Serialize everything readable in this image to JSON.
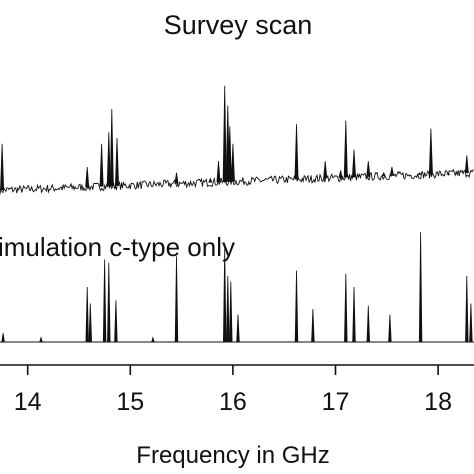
{
  "chart_data": [
    {
      "type": "line",
      "title": "Survey scan",
      "xlabel": "Frequency in GHz",
      "ylabel": "",
      "xlim": [
        13.73,
        18.35
      ],
      "ylim": [
        0,
        1
      ],
      "baseline": {
        "x": [
          13.73,
          18.35
        ],
        "y": [
          0.05,
          0.2
        ]
      },
      "peaks": [
        {
          "x": 13.75,
          "y": 0.45
        },
        {
          "x": 14.58,
          "y": 0.25
        },
        {
          "x": 14.72,
          "y": 0.45
        },
        {
          "x": 14.79,
          "y": 0.55
        },
        {
          "x": 14.82,
          "y": 0.75
        },
        {
          "x": 14.87,
          "y": 0.5
        },
        {
          "x": 15.45,
          "y": 0.2
        },
        {
          "x": 15.78,
          "y": 0.15
        },
        {
          "x": 15.86,
          "y": 0.3
        },
        {
          "x": 15.92,
          "y": 0.95
        },
        {
          "x": 15.95,
          "y": 0.78
        },
        {
          "x": 15.97,
          "y": 0.6
        },
        {
          "x": 16.0,
          "y": 0.45
        },
        {
          "x": 16.62,
          "y": 0.62
        },
        {
          "x": 16.9,
          "y": 0.3
        },
        {
          "x": 17.05,
          "y": 0.22
        },
        {
          "x": 17.1,
          "y": 0.65
        },
        {
          "x": 17.18,
          "y": 0.4
        },
        {
          "x": 17.32,
          "y": 0.3
        },
        {
          "x": 17.47,
          "y": 0.2
        },
        {
          "x": 17.55,
          "y": 0.25
        },
        {
          "x": 17.82,
          "y": 0.2
        },
        {
          "x": 17.93,
          "y": 0.58
        },
        {
          "x": 18.1,
          "y": 0.18
        },
        {
          "x": 18.28,
          "y": 0.35
        }
      ]
    },
    {
      "type": "line",
      "title": "imulation c-type only",
      "xlabel": "Frequency in GHz",
      "ylabel": "",
      "xlim": [
        13.73,
        18.35
      ],
      "ylim": [
        0,
        1
      ],
      "xticks": [
        14,
        15,
        16,
        17,
        18
      ],
      "peaks": [
        {
          "x": 13.76,
          "y": 0.08
        },
        {
          "x": 14.13,
          "y": 0.04
        },
        {
          "x": 14.58,
          "y": 0.5
        },
        {
          "x": 14.61,
          "y": 0.35
        },
        {
          "x": 14.75,
          "y": 0.75
        },
        {
          "x": 14.79,
          "y": 0.72
        },
        {
          "x": 14.86,
          "y": 0.38
        },
        {
          "x": 15.22,
          "y": 0.04
        },
        {
          "x": 15.45,
          "y": 0.78
        },
        {
          "x": 15.92,
          "y": 0.85
        },
        {
          "x": 15.95,
          "y": 0.6
        },
        {
          "x": 15.98,
          "y": 0.55
        },
        {
          "x": 16.05,
          "y": 0.25
        },
        {
          "x": 16.62,
          "y": 0.65
        },
        {
          "x": 16.78,
          "y": 0.3
        },
        {
          "x": 17.1,
          "y": 0.62
        },
        {
          "x": 17.18,
          "y": 0.5
        },
        {
          "x": 17.32,
          "y": 0.33
        },
        {
          "x": 17.53,
          "y": 0.25
        },
        {
          "x": 17.83,
          "y": 1.0
        },
        {
          "x": 18.28,
          "y": 0.6
        },
        {
          "x": 18.32,
          "y": 0.35
        }
      ]
    }
  ]
}
